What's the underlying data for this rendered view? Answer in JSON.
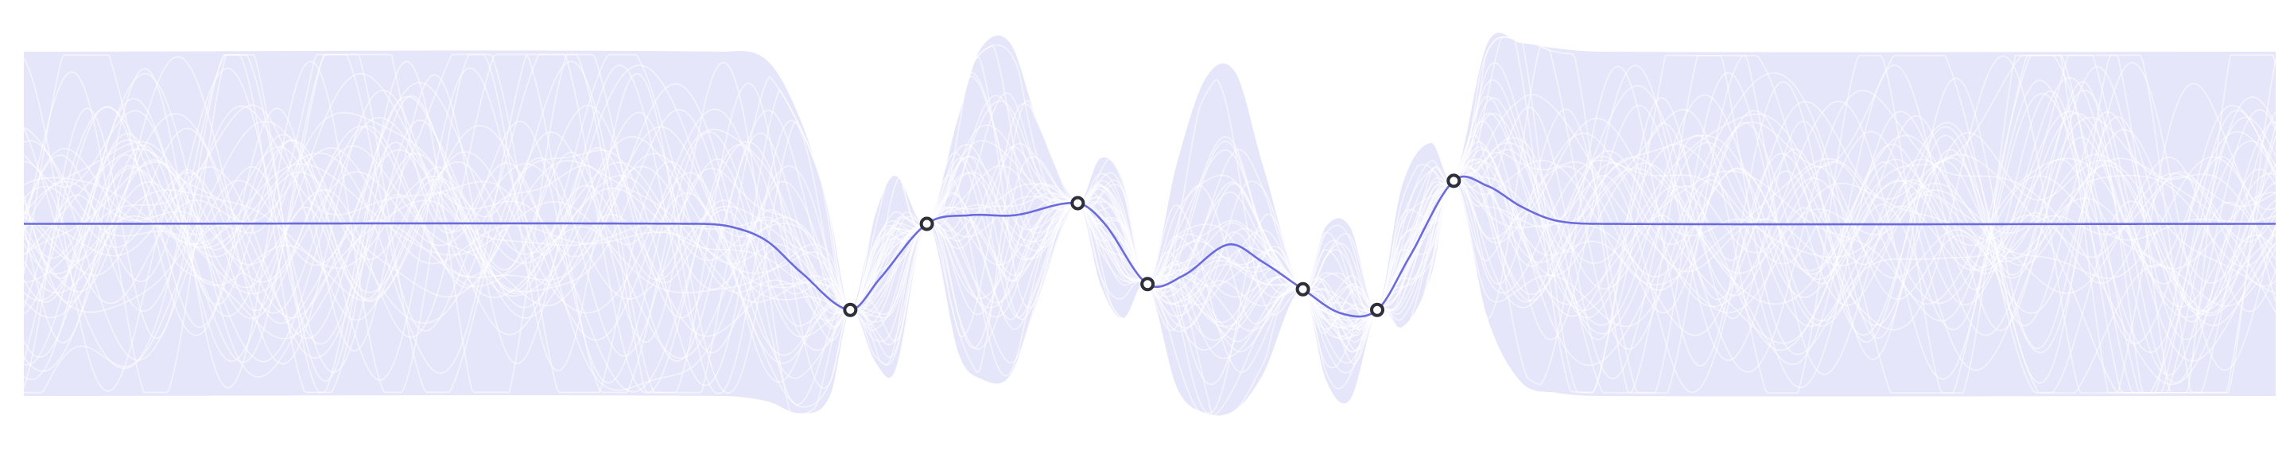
{
  "chart_data": {
    "type": "line",
    "title": "",
    "xlabel": "",
    "ylabel": "",
    "xlim": [
      0,
      1
    ],
    "ylim": [
      -1.0,
      1.0
    ],
    "prior_mean": 0.0,
    "prior_band": [
      -1.0,
      1.0
    ],
    "grid": false,
    "legend": "none",
    "colors": {
      "band": "#e6e6fb",
      "mean": "#6b6bdf",
      "samples": "#ffffff",
      "point_edge": "#2f2f3a",
      "point_fill": "#ffffff"
    },
    "observations": {
      "x": [
        0.367,
        0.401,
        0.468,
        0.499,
        0.568,
        0.601,
        0.635
      ],
      "y": [
        -0.5,
        0.0,
        0.12,
        -0.35,
        -0.38,
        -0.5,
        0.25
      ]
    },
    "series": [
      {
        "kind": "posterior_mean",
        "x": [
          0.0,
          0.3,
          0.315,
          0.33,
          0.345,
          0.367,
          0.38,
          0.401,
          0.42,
          0.44,
          0.468,
          0.48,
          0.499,
          0.515,
          0.535,
          0.55,
          0.568,
          0.585,
          0.601,
          0.615,
          0.635,
          0.65,
          0.665,
          0.68,
          0.7,
          1.0
        ],
        "y": [
          0.0,
          0.0,
          -0.02,
          -0.1,
          -0.28,
          -0.5,
          -0.32,
          0.0,
          0.05,
          0.05,
          0.12,
          0.0,
          -0.35,
          -0.3,
          -0.12,
          -0.22,
          -0.38,
          -0.52,
          -0.5,
          -0.2,
          0.25,
          0.22,
          0.1,
          0.02,
          0.0,
          0.0
        ]
      },
      {
        "kind": "upper_band",
        "x": [
          0.0,
          0.31,
          0.33,
          0.345,
          0.358,
          0.367,
          0.378,
          0.387,
          0.401,
          0.415,
          0.425,
          0.438,
          0.45,
          0.468,
          0.478,
          0.488,
          0.499,
          0.512,
          0.525,
          0.538,
          0.55,
          0.568,
          0.578,
          0.589,
          0.601,
          0.612,
          0.625,
          0.635,
          0.65,
          0.665,
          0.68,
          0.7,
          1.0
        ],
        "y": [
          1.0,
          1.0,
          0.95,
          0.6,
          0.05,
          -0.5,
          0.05,
          0.28,
          0.0,
          0.62,
          1.02,
          1.05,
          0.6,
          0.12,
          0.38,
          0.25,
          -0.35,
          0.35,
          0.85,
          0.88,
          0.35,
          -0.38,
          -0.02,
          -0.02,
          -0.5,
          0.22,
          0.47,
          0.25,
          1.05,
          1.05,
          1.02,
          1.0,
          1.0
        ]
      },
      {
        "kind": "lower_band",
        "x": [
          0.0,
          0.31,
          0.33,
          0.345,
          0.358,
          0.367,
          0.378,
          0.387,
          0.401,
          0.415,
          0.425,
          0.438,
          0.45,
          0.468,
          0.478,
          0.488,
          0.499,
          0.512,
          0.525,
          0.538,
          0.55,
          0.568,
          0.578,
          0.589,
          0.601,
          0.612,
          0.625,
          0.635,
          0.65,
          0.665,
          0.68,
          0.7,
          1.0
        ],
        "y": [
          -1.0,
          -1.0,
          -1.03,
          -1.1,
          -1.0,
          -0.5,
          -0.8,
          -0.85,
          0.0,
          -0.75,
          -0.9,
          -0.88,
          -0.45,
          0.12,
          -0.35,
          -0.55,
          -0.35,
          -0.95,
          -1.1,
          -1.08,
          -0.88,
          -0.38,
          -0.9,
          -1.02,
          -0.5,
          -0.6,
          -0.3,
          0.25,
          -0.55,
          -0.92,
          -0.98,
          -1.0,
          -1.0
        ]
      }
    ],
    "sample_count": 40,
    "sample_seed": 7
  }
}
